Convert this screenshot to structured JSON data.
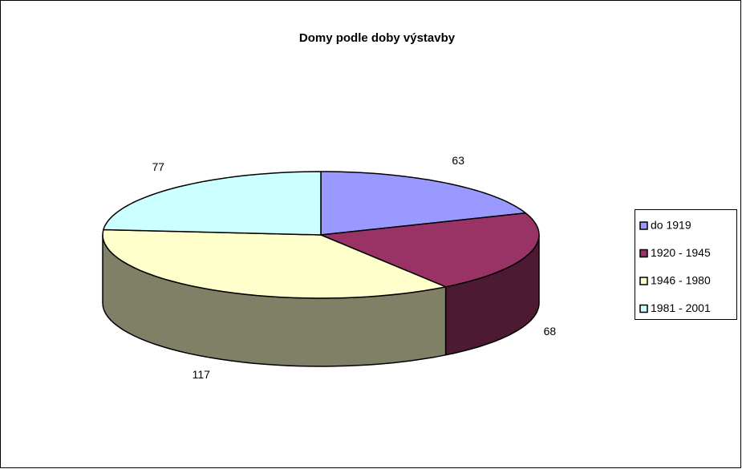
{
  "chart_data": {
    "type": "pie",
    "title": "Domy podle doby výstavby",
    "categories": [
      "do 1919",
      "1920 - 1945",
      "1946 - 1980",
      "1981 - 2001"
    ],
    "values": [
      63,
      68,
      117,
      77
    ],
    "colors": [
      "#9999ff",
      "#993366",
      "#ffffcc",
      "#ccffff"
    ],
    "legend": "right"
  }
}
